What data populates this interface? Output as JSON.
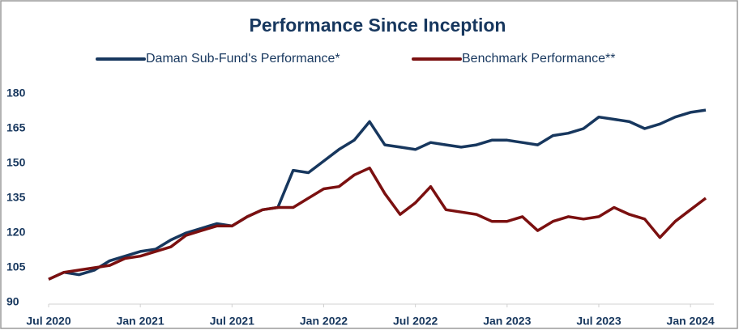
{
  "chart_data": {
    "type": "line",
    "title": "Performance Since Inception",
    "x": [
      "2020-07",
      "2020-08",
      "2020-09",
      "2020-10",
      "2020-11",
      "2020-12",
      "2021-01",
      "2021-02",
      "2021-03",
      "2021-04",
      "2021-05",
      "2021-06",
      "2021-07",
      "2021-08",
      "2021-09",
      "2021-10",
      "2021-11",
      "2021-12",
      "2022-01",
      "2022-02",
      "2022-03",
      "2022-04",
      "2022-05",
      "2022-06",
      "2022-07",
      "2022-08",
      "2022-09",
      "2022-10",
      "2022-11",
      "2022-12",
      "2023-01",
      "2023-02",
      "2023-03",
      "2023-04",
      "2023-05",
      "2023-06",
      "2023-07",
      "2023-08",
      "2023-09",
      "2023-10",
      "2023-11",
      "2023-12",
      "2024-01",
      "2024-02"
    ],
    "series": [
      {
        "name": "Daman Sub-Fund's Performance*",
        "color": "#17375e",
        "values": [
          100,
          103,
          102,
          104,
          108,
          110,
          112,
          113,
          117,
          120,
          122,
          124,
          123,
          127,
          130,
          131,
          147,
          146,
          151,
          156,
          160,
          168,
          158,
          157,
          156,
          159,
          158,
          157,
          158,
          160,
          160,
          159,
          158,
          162,
          163,
          165,
          170,
          169,
          168,
          165,
          167,
          170,
          172,
          173
        ]
      },
      {
        "name": "Benchmark Performance**",
        "color": "#7b1010",
        "values": [
          100,
          103,
          104,
          105,
          106,
          109,
          110,
          112,
          114,
          119,
          121,
          123,
          123,
          127,
          130,
          131,
          131,
          135,
          139,
          140,
          145,
          148,
          137,
          128,
          133,
          140,
          130,
          129,
          128,
          125,
          125,
          127,
          121,
          125,
          127,
          126,
          127,
          131,
          128,
          126,
          118,
          125,
          130,
          135
        ]
      }
    ],
    "xlim": [
      "2020-07",
      "2024-02"
    ],
    "xticks": [
      {
        "value": "2020-07",
        "label": "Jul 2020"
      },
      {
        "value": "2021-01",
        "label": "Jan 2021"
      },
      {
        "value": "2021-07",
        "label": "Jul 2021"
      },
      {
        "value": "2022-01",
        "label": "Jan 2022"
      },
      {
        "value": "2022-07",
        "label": "Jul 2022"
      },
      {
        "value": "2023-01",
        "label": "Jan 2023"
      },
      {
        "value": "2023-07",
        "label": "Jul 2023"
      },
      {
        "value": "2024-01",
        "label": "Jan 2024"
      }
    ],
    "ylim": [
      90,
      180
    ],
    "yticks": [
      90,
      105,
      120,
      135,
      150,
      165,
      180
    ],
    "legend": "top"
  }
}
